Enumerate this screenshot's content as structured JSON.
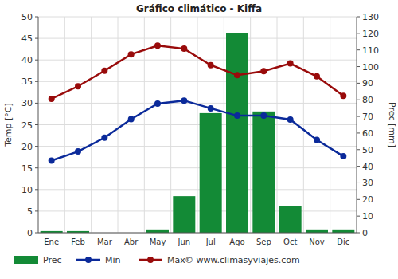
{
  "chart_data": {
    "type": "bar",
    "title": "Gráfico climático - Kiffa",
    "y_label": "Temp [°C]",
    "y2_label": "Prec [mm]",
    "annotation": "© www.climasyviajes.com",
    "categories": [
      "Ene",
      "Feb",
      "Mar",
      "Abr",
      "May",
      "Jun",
      "Jul",
      "Ago",
      "Sep",
      "Oct",
      "Nov",
      "Dic"
    ],
    "series": [
      {
        "name": "Prec",
        "type": "bar",
        "axis": "y2",
        "color": "#138a36",
        "values": [
          1,
          1,
          0,
          0,
          2,
          22,
          72,
          120,
          73,
          16,
          2,
          2
        ]
      },
      {
        "name": "Min",
        "type": "line",
        "color": "#0b2a9a",
        "marker": "circle",
        "values": [
          16.7,
          18.8,
          22,
          26.3,
          29.9,
          30.6,
          28.8,
          27.1,
          27.1,
          26.2,
          21.5,
          17.7
        ]
      },
      {
        "name": "Max",
        "type": "line",
        "color": "#990b0b",
        "marker": "circle",
        "values": [
          31,
          33.9,
          37.5,
          41.3,
          43.3,
          42.6,
          38.8,
          36.5,
          37.4,
          39.2,
          36.2,
          31.7
        ]
      }
    ],
    "ylim": [
      0,
      50
    ],
    "yticks": [
      0,
      5,
      10,
      15,
      20,
      25,
      30,
      35,
      40,
      45,
      50
    ],
    "y2lim": [
      0,
      130
    ],
    "y2ticks": [
      0,
      10,
      20,
      30,
      40,
      50,
      60,
      70,
      80,
      90,
      100,
      110,
      120,
      130
    ],
    "grid": true,
    "legend": "bottom"
  }
}
